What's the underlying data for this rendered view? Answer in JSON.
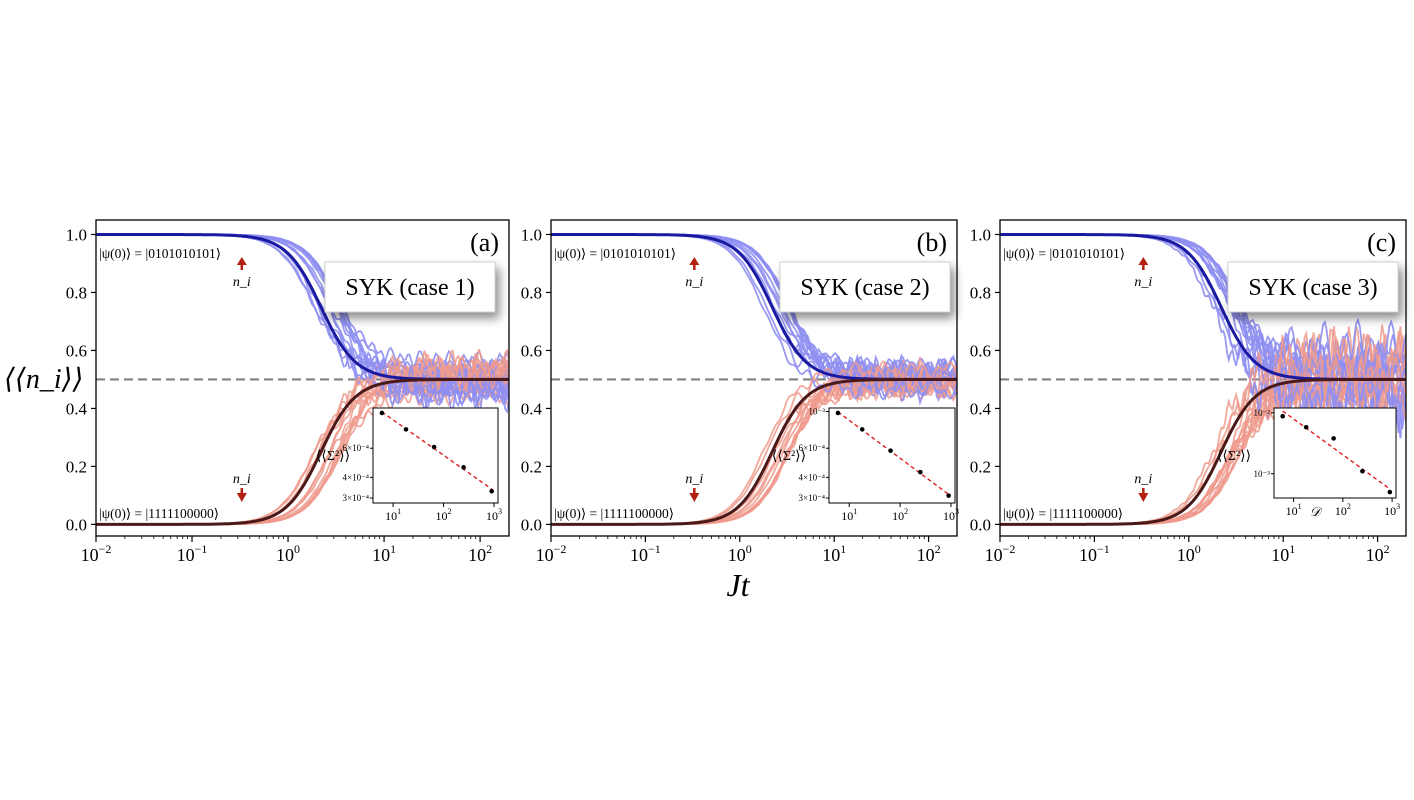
{
  "figure": {
    "ylabel": "⟨⟨n_i⟩⟩",
    "xlabel": "Jt"
  },
  "colors": {
    "dark_blue": "#1a1aa0",
    "light_blue": "#8f8ff2",
    "dark_red": "#4a1a1a",
    "light_red": "#ee9a8c",
    "arrow_red": "#b32010",
    "dashed": "#808080",
    "inset_fit": "#e02020"
  },
  "chart_data": [
    {
      "panel": "(a)",
      "type": "line",
      "title": "SYK (case 1)",
      "xscale": "log",
      "xlim": [
        0.01,
        200
      ],
      "ylim": [
        -0.04,
        1.05
      ],
      "xticks": [
        0.01,
        0.1,
        1,
        10,
        100
      ],
      "xtick_labels": [
        "10",
        "10",
        "10",
        "10",
        "10"
      ],
      "xtick_exponents": [
        "−2",
        "−1",
        "0",
        "1",
        "2"
      ],
      "yticks": [
        0.0,
        0.2,
        0.4,
        0.6,
        0.8,
        1.0
      ],
      "ytick_labels": [
        "0.0",
        "0.2",
        "0.4",
        "0.6",
        "0.8",
        "1.0"
      ],
      "reference_line": 0.5,
      "state_top": "|ψ(0)⟩ = |0101010101⟩",
      "state_bottom": "|ψ(0)⟩ = |1111100000⟩",
      "ni_label": "n_i",
      "series": [
        {
          "name": "average from |0101010101⟩",
          "start": 1.0,
          "end": 0.5,
          "t_half": 2.2,
          "spread": 0.06
        },
        {
          "name": "average from |1111100000⟩",
          "start": 0.0,
          "end": 0.5,
          "t_half": 2.2,
          "spread": 0.06
        }
      ],
      "inset": {
        "ylabel": "⟨⟨Σ²⟩⟩",
        "xlabel": "",
        "x": [
          6,
          18,
          65,
          250,
          900
        ],
        "y": [
          0.00098,
          0.00078,
          0.00061,
          0.00046,
          0.00033
        ],
        "xticks_exp": [
          "1",
          "2",
          "3"
        ],
        "ytick_labels": [
          "6×10⁻⁴",
          "4×10⁻⁴",
          "3×10⁻⁴"
        ],
        "ytick_values": [
          0.0006,
          0.0004,
          0.0003
        ],
        "ylim": [
          0.00028,
          0.00105
        ]
      }
    },
    {
      "panel": "(b)",
      "type": "line",
      "title": "SYK (case 2)",
      "xscale": "log",
      "xlim": [
        0.01,
        200
      ],
      "ylim": [
        -0.04,
        1.05
      ],
      "xticks": [
        0.01,
        0.1,
        1,
        10,
        100
      ],
      "xtick_labels": [
        "10",
        "10",
        "10",
        "10",
        "10"
      ],
      "xtick_exponents": [
        "−2",
        "−1",
        "0",
        "1",
        "2"
      ],
      "yticks": [
        0.0,
        0.2,
        0.4,
        0.6,
        0.8,
        1.0
      ],
      "ytick_labels": [
        "0.0",
        "0.2",
        "0.4",
        "0.6",
        "0.8",
        "1.0"
      ],
      "reference_line": 0.5,
      "state_top": "|ψ(0)⟩ = |0101010101⟩",
      "state_bottom": "|ψ(0)⟩ = |1111100000⟩",
      "ni_label": "n_i",
      "series": [
        {
          "name": "average from |0101010101⟩",
          "start": 1.0,
          "end": 0.5,
          "t_half": 2.2,
          "spread": 0.05
        },
        {
          "name": "average from |1111100000⟩",
          "start": 0.0,
          "end": 0.5,
          "t_half": 2.2,
          "spread": 0.05
        }
      ],
      "inset": {
        "ylabel": "⟨⟨Σ²⟩⟩",
        "xlabel": "",
        "x": [
          6,
          18,
          65,
          250,
          900
        ],
        "y": [
          0.00098,
          0.00078,
          0.00058,
          0.00043,
          0.00031
        ],
        "xticks_exp": [
          "1",
          "2",
          "3"
        ],
        "ytick_labels": [
          "10⁻³",
          "6×10⁻⁴",
          "4×10⁻⁴",
          "3×10⁻⁴"
        ],
        "ytick_values": [
          0.001,
          0.0006,
          0.0004,
          0.0003
        ],
        "ylim": [
          0.00028,
          0.00105
        ]
      }
    },
    {
      "panel": "(c)",
      "type": "line",
      "title": "SYK (case 3)",
      "xscale": "log",
      "xlim": [
        0.01,
        200
      ],
      "ylim": [
        -0.04,
        1.05
      ],
      "xticks": [
        0.01,
        0.1,
        1,
        10,
        100
      ],
      "xtick_labels": [
        "10",
        "10",
        "10",
        "10",
        "10"
      ],
      "xtick_exponents": [
        "−2",
        "−1",
        "0",
        "1",
        "2"
      ],
      "yticks": [
        0.0,
        0.2,
        0.4,
        0.6,
        0.8,
        1.0
      ],
      "ytick_labels": [
        "0.0",
        "0.2",
        "0.4",
        "0.6",
        "0.8",
        "1.0"
      ],
      "reference_line": 0.5,
      "state_top": "|ψ(0)⟩ = |0101010101⟩",
      "state_bottom": "|ψ(0)⟩ = |1111100000⟩",
      "ni_label": "n_i",
      "series": [
        {
          "name": "average from |0101010101⟩",
          "start": 1.0,
          "end": 0.5,
          "t_half": 2.2,
          "spread": 0.11
        },
        {
          "name": "average from |1111100000⟩",
          "start": 0.0,
          "end": 0.5,
          "t_half": 2.2,
          "spread": 0.11
        }
      ],
      "inset": {
        "ylabel": "⟨⟨Σ²⟩⟩",
        "xlabel": "𝒟",
        "x": [
          6,
          18,
          65,
          250,
          900
        ],
        "y": [
          0.0088,
          0.0058,
          0.0038,
          0.0011,
          0.0005
        ],
        "xticks_exp": [
          "1",
          "2",
          "3"
        ],
        "ytick_labels": [
          "10⁻²",
          "10⁻³"
        ],
        "ytick_values": [
          0.01,
          0.001
        ],
        "ylim": [
          0.0004,
          0.012
        ]
      }
    }
  ]
}
